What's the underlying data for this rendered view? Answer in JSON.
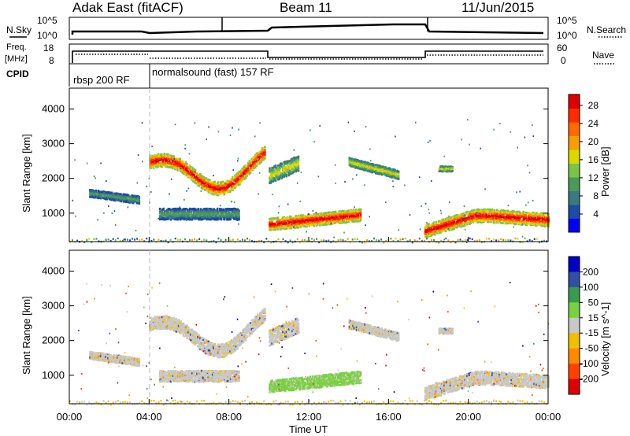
{
  "header": {
    "station": "Adak East (fitACF)",
    "beam": "Beam 11",
    "date": "11/Jun/2015"
  },
  "status_panels": {
    "nsky_label": "N.Sky",
    "nsearch_label": "N.Search",
    "freq_label": "Freq.",
    "freq_unit": "[MHz]",
    "nave_label": "Nave",
    "cpid_label": "CPID",
    "left_axis_top": [
      "10^5",
      "10^0"
    ],
    "right_axis_top": [
      "10^5",
      "10^0"
    ],
    "freq_ticks": [
      "18",
      "8"
    ],
    "nave_ticks": [
      "60",
      "0"
    ],
    "cpid_entries": [
      {
        "label": "rbsp 200 RF",
        "start_hour": 0,
        "end_hour": 4
      },
      {
        "label": "normalsound (fast) 157 RF",
        "start_hour": 4,
        "end_hour": 24
      }
    ]
  },
  "chart_data": [
    {
      "type": "heatmap",
      "title": "",
      "xlabel": "",
      "ylabel": "Slant Range [km]",
      "x_ticks": [
        "00:00",
        "04:00",
        "08:00",
        "12:00",
        "16:00",
        "20:00",
        "00:00"
      ],
      "y_ticks": [
        "1000",
        "2000",
        "3000",
        "4000"
      ],
      "xlim": [
        0,
        24
      ],
      "ylim": [
        180,
        4600
      ],
      "colorbar": {
        "label": "Power [dB]",
        "ticks": [
          "4",
          "8",
          "12",
          "16",
          "20",
          "24",
          "28"
        ],
        "range": [
          0,
          30
        ],
        "colors": [
          "#0000ff",
          "#1e4aa8",
          "#3a7a80",
          "#4a9a5a",
          "#7ac44a",
          "#d9d900",
          "#f5a000",
          "#ff6a00",
          "#ff2a00",
          "#e00000"
        ]
      }
    },
    {
      "type": "heatmap",
      "title": "",
      "xlabel": "Time UT",
      "ylabel": "Slant Range [km]",
      "x_ticks": [
        "00:00",
        "04:00",
        "08:00",
        "12:00",
        "16:00",
        "20:00",
        "00:00"
      ],
      "y_ticks": [
        "1000",
        "2000",
        "3000",
        "4000"
      ],
      "xlim": [
        0,
        24
      ],
      "ylim": [
        180,
        4600
      ],
      "colorbar": {
        "label": "Velocity [m s^-1]",
        "ticks": [
          "200",
          "100",
          "50",
          "15",
          "-15",
          "-50",
          "-100",
          "-200"
        ],
        "range": [
          -250,
          250
        ],
        "colors": [
          "#0000c8",
          "#3050a0",
          "#3a9a50",
          "#7ad040",
          "#c8c8c8",
          "#f0c000",
          "#ff8a00",
          "#ff4000",
          "#e00000"
        ]
      }
    }
  ],
  "colors": {
    "ground_scatter": "#c8c8c8",
    "frame": "#000000",
    "background": "#ffffff"
  }
}
